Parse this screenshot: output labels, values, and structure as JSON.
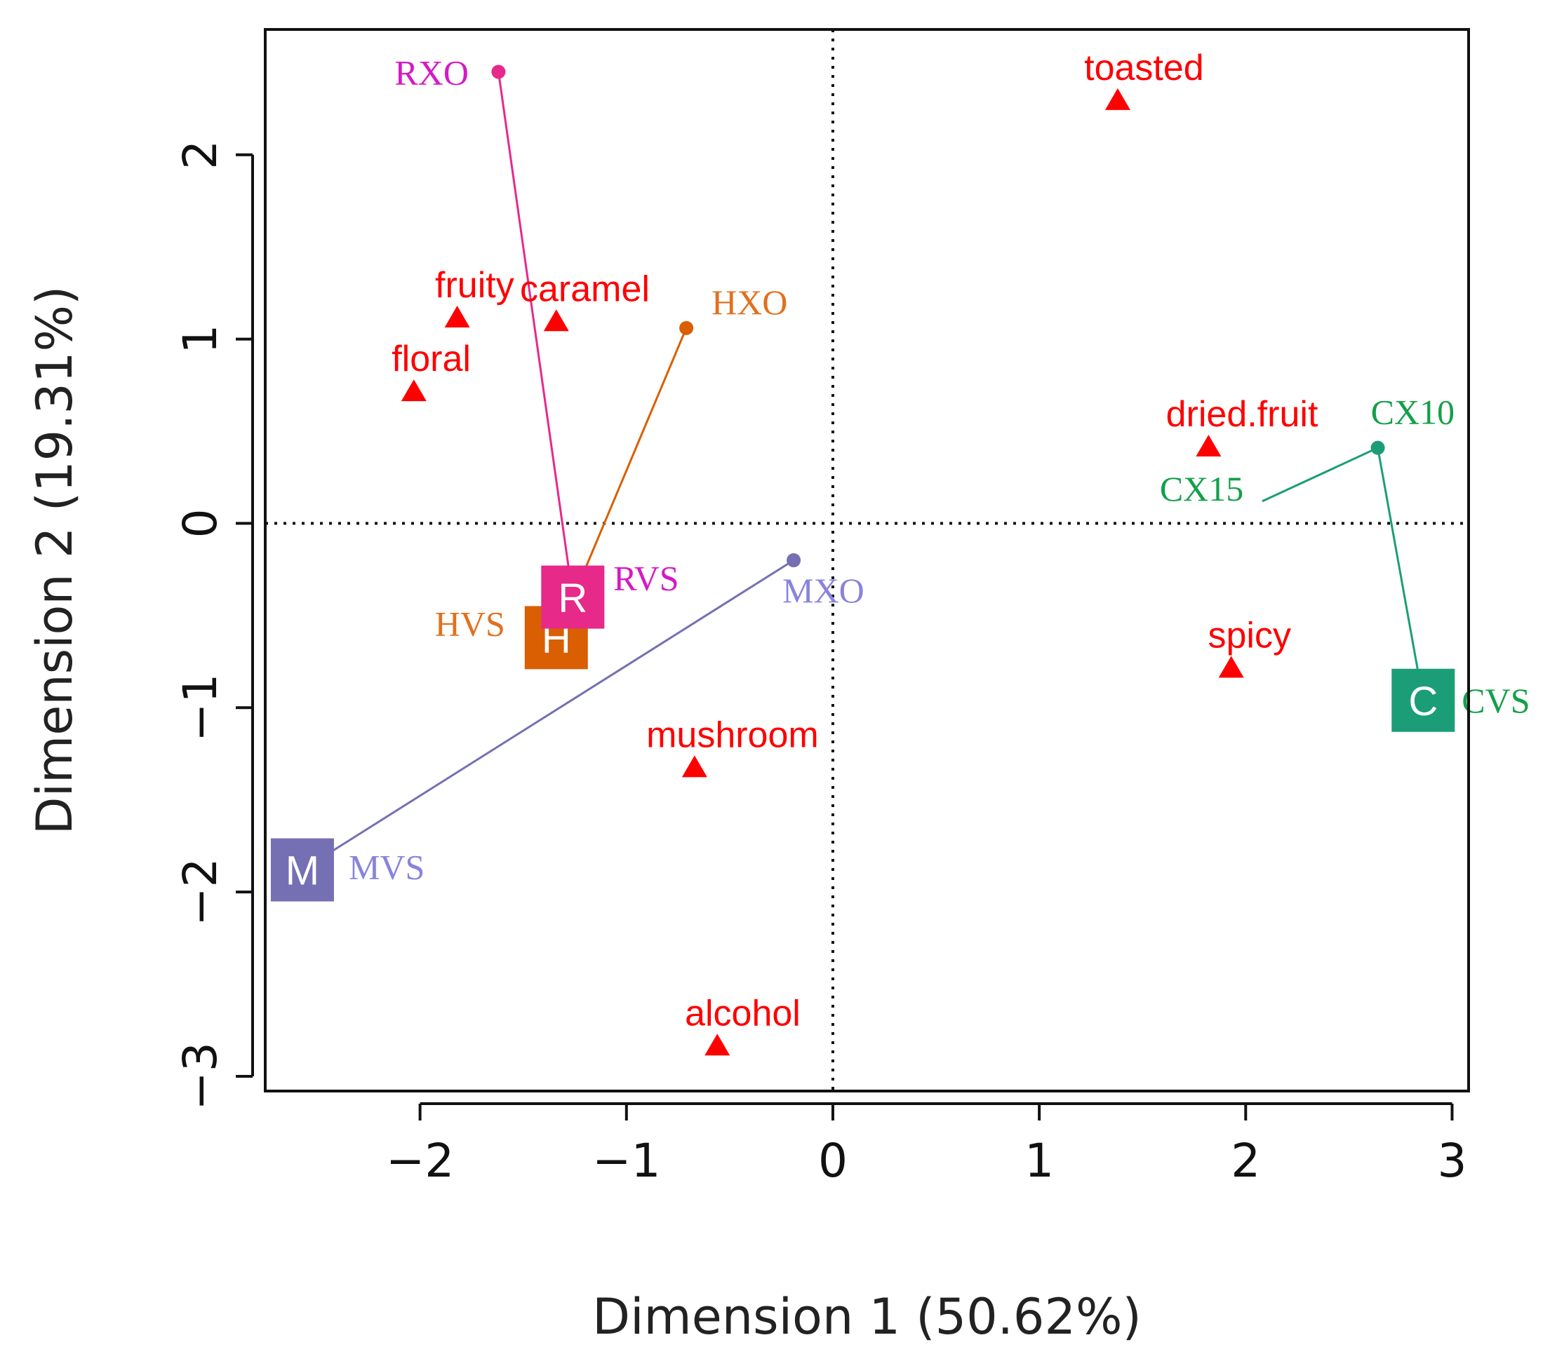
{
  "chart_data": {
    "type": "scatter",
    "title": "",
    "xlabel": "Dimension 1 (50.62%)",
    "ylabel": "Dimension 2 (19.31%)",
    "xlim": [
      -2.75,
      3.08
    ],
    "ylim": [
      -3.08,
      2.68
    ],
    "xticks": [
      -2,
      -1,
      0,
      1,
      2,
      3
    ],
    "yticks": [
      -3,
      -2,
      -1,
      0,
      1,
      2
    ],
    "xtick_labels": [
      "−2",
      "−1",
      "0",
      "1",
      "2",
      "3"
    ],
    "ytick_labels": [
      "−3",
      "−2",
      "−1",
      "0",
      "1",
      "2"
    ],
    "reference_lines": {
      "x": 0,
      "y": 0,
      "style": "dotted"
    },
    "attributes": [
      {
        "label": "toasted",
        "x": 1.38,
        "y": 2.3
      },
      {
        "label": "fruity",
        "x": -1.82,
        "y": 1.12
      },
      {
        "label": "caramel",
        "x": -1.34,
        "y": 1.1
      },
      {
        "label": "floral",
        "x": -2.03,
        "y": 0.72
      },
      {
        "label": "dried.fruit",
        "x": 1.82,
        "y": 0.42
      },
      {
        "label": "spicy",
        "x": 1.93,
        "y": -0.78
      },
      {
        "label": "mushroom",
        "x": -0.67,
        "y": -1.32
      },
      {
        "label": "alcohol",
        "x": -0.56,
        "y": -2.83
      }
    ],
    "groups": [
      {
        "name": "R",
        "color": "#e7298a",
        "label_color": "#d51ac4",
        "centroid": {
          "label": "RVS",
          "x": -1.26,
          "y": -0.4
        },
        "points": [
          {
            "label": "RXO",
            "x": -1.62,
            "y": 2.45
          }
        ]
      },
      {
        "name": "H",
        "color": "#d95f02",
        "label_color": "#e2701e",
        "centroid": {
          "label": "HVS",
          "x": -1.34,
          "y": -0.62
        },
        "points": [
          {
            "label": "HXO",
            "x": -0.71,
            "y": 1.06
          }
        ]
      },
      {
        "name": "M",
        "color": "#7570b3",
        "label_color": "#8883dc",
        "centroid": {
          "label": "MVS",
          "x": -2.57,
          "y": -1.88
        },
        "points": [
          {
            "label": "MXO",
            "x": -0.19,
            "y": -0.2
          }
        ]
      },
      {
        "name": "C",
        "color": "#1b9e77",
        "label_color": "#14a04a",
        "centroid": {
          "label": "CVS",
          "x": 2.86,
          "y": -0.96
        },
        "points": [
          {
            "label": "CX10",
            "x": 2.64,
            "y": 0.41
          },
          {
            "label": "CX15",
            "x": 2.08,
            "y": 0.12
          }
        ]
      }
    ],
    "colors": {
      "attribute": "#ff0000",
      "axis": "#111111"
    }
  }
}
